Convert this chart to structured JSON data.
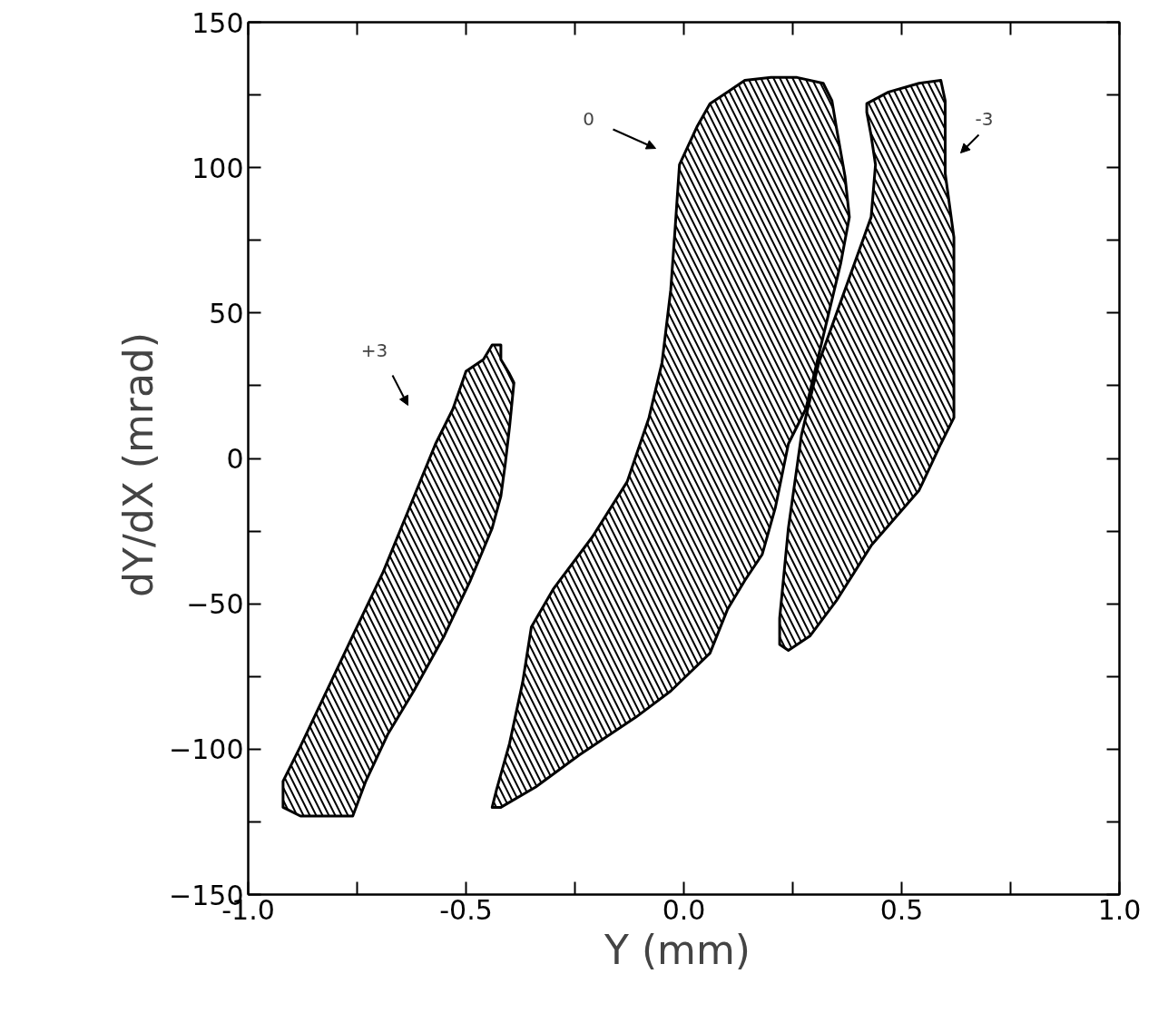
{
  "chart_data": {
    "type": "area",
    "xlabel": "Y  (mm)",
    "ylabel": "dY/dX  (mrad)",
    "xlim": [
      -1,
      1
    ],
    "ylim": [
      -150,
      150
    ],
    "xticks": [
      {
        "value": -1,
        "label": "-1.0"
      },
      {
        "value": -0.75,
        "label": null
      },
      {
        "value": -0.5,
        "label": "-0.5"
      },
      {
        "value": -0.25,
        "label": null
      },
      {
        "value": 0,
        "label": "0.0"
      },
      {
        "value": 0.25,
        "label": null
      },
      {
        "value": 0.5,
        "label": "0.5"
      },
      {
        "value": 0.75,
        "label": null
      },
      {
        "value": 1,
        "label": "1.0"
      }
    ],
    "yticks": [
      -150,
      {
        "value": -125,
        "label": null
      },
      -100,
      {
        "value": -75,
        "label": null
      },
      -50,
      {
        "value": -25,
        "label": null
      },
      0,
      {
        "value": 25,
        "label": null
      },
      50,
      {
        "value": 75,
        "label": null
      },
      100,
      {
        "value": 125,
        "label": null
      },
      150
    ],
    "grid": false,
    "series": [
      {
        "color": "#000000",
        "x": [
          -0.44,
          -0.42,
          -0.42,
          -0.4,
          -0.39,
          -0.4,
          -0.41,
          -0.42,
          -0.44,
          -0.49,
          -0.55,
          -0.62,
          -0.68,
          -0.73,
          -0.76,
          -0.88,
          -0.92,
          -0.92,
          -0.88,
          -0.82,
          -0.76,
          -0.69,
          -0.63,
          -0.57,
          -0.53,
          -0.5,
          -0.46
        ],
        "values": [
          39,
          39,
          34,
          29,
          26,
          11,
          -2,
          -13,
          -24,
          -42,
          -61,
          -80,
          -95,
          -111,
          -123,
          -123,
          -120,
          -111,
          -99,
          -80,
          -61,
          -39,
          -17,
          5,
          17,
          30,
          34
        ]
      },
      {
        "color": "#000000",
        "x": [
          -0.44,
          -0.43,
          -0.4,
          -0.37,
          -0.35,
          -0.3,
          -0.21,
          -0.13,
          -0.08,
          -0.05,
          -0.03,
          -0.02,
          -0.01,
          0.03,
          0.06,
          0.1,
          0.14,
          0.2,
          0.26,
          0.32,
          0.34,
          0.35,
          0.37,
          0.38,
          0.36,
          0.32,
          0.28,
          0.24,
          0.21,
          0.18,
          0.14,
          0.1,
          0.06,
          -0.03,
          -0.11,
          -0.24,
          -0.34,
          -0.42
        ],
        "values": [
          -120,
          -114,
          -98,
          -77,
          -58,
          -45,
          -27,
          -8,
          14,
          33,
          58,
          79,
          101,
          114,
          122,
          126,
          130,
          131,
          131,
          129,
          123,
          114,
          97,
          83,
          67,
          42,
          17,
          5,
          -17,
          -33,
          -42,
          -52,
          -67,
          -80,
          -89,
          -102,
          -113,
          -120
        ]
      },
      {
        "color": "#000000",
        "x": [
          0.42,
          0.47,
          0.54,
          0.59,
          0.6,
          0.6,
          0.62,
          0.62,
          0.59,
          0.54,
          0.43,
          0.35,
          0.29,
          0.24,
          0.22,
          0.22,
          0.24,
          0.27,
          0.31,
          0.37,
          0.43,
          0.44,
          0.43,
          0.42
        ],
        "values": [
          122,
          126,
          129,
          130,
          123,
          98,
          76,
          14,
          5,
          -11,
          -30,
          -49,
          -61,
          -66,
          -64,
          -55,
          -24,
          8,
          33,
          58,
          83,
          101,
          111,
          119
        ]
      }
    ],
    "annotations": [
      "+3",
      "0",
      "-3"
    ]
  }
}
